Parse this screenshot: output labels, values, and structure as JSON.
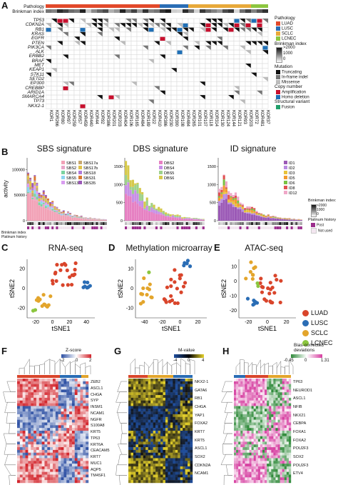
{
  "panels": {
    "A": "A",
    "B": "B",
    "C": "C",
    "D": "D",
    "E": "E",
    "F": "F",
    "G": "G",
    "H": "H"
  },
  "panelA": {
    "track_labels": [
      "Pathology",
      "Brinkman index"
    ],
    "genes": [
      "TP53",
      "CDKN2A",
      "RB1",
      "KRAS",
      "EGFR",
      "PTEN",
      "PIK3CA",
      "ALK",
      "ERBB2",
      "BRAF",
      "MET",
      "KEAP1",
      "STK11",
      "SETD2",
      "EP300",
      "CREBBP",
      "ARID1A",
      "SMARCA4",
      "TP73",
      "NKX2-1"
    ],
    "samples": [
      "KOR1",
      "KOR266",
      "KOR80",
      "KOR97",
      "KOR259",
      "KOR57",
      "KOR459",
      "KOR440",
      "KOR44",
      "KOR92",
      "KOR386",
      "KOR201",
      "KOR203",
      "KOR404",
      "KOR106",
      "KOR165",
      "KOR484",
      "KOR189",
      "KOR22",
      "KOR410",
      "KOR386",
      "KOR230",
      "KOR390",
      "KOR108",
      "KOR484",
      "KOR265",
      "KOR101",
      "KOR107",
      "KOR118",
      "KOR314",
      "KOR130",
      "KOR124",
      "KOR144",
      "KOR121",
      "KOR93",
      "KOR203",
      "KOR72",
      "KOR481",
      "KOR37"
    ],
    "legend": {
      "pathology_title": "Pathology",
      "pathology": [
        {
          "label": "LUAD",
          "color": "#e2492a"
        },
        {
          "label": "LUSC",
          "color": "#2a6db5"
        },
        {
          "label": "SCLC",
          "color": "#e8a93a"
        },
        {
          "label": "LCNEC",
          "color": "#8cc63f"
        }
      ],
      "brinkman_title": "Brinkman index",
      "brinkman_ticks": [
        ">2000",
        "1000",
        "0"
      ],
      "mutation_title": "Mutation",
      "mutation": [
        {
          "label": "Truncating",
          "color": "#111111"
        },
        {
          "label": "In-frame indel",
          "color": "#777777"
        },
        {
          "label": "Missense",
          "color": "#bbbbbb"
        }
      ],
      "copy_title": "Copy number",
      "copy": [
        {
          "label": "Amplification",
          "color": "#c8102e"
        },
        {
          "label": "Homo deletion",
          "color": "#1f6fb5"
        }
      ],
      "sv_title": "Structural variant",
      "sv": [
        {
          "label": "Fusion",
          "color": "#22a06b"
        }
      ]
    }
  },
  "panelB": {
    "charts": [
      {
        "title": "SBS signature",
        "yaxis_label": "activity",
        "yticks": [
          "0",
          "50000",
          "100000"
        ],
        "legend": [
          "SBS1",
          "SBS2",
          "SBS4",
          "SBS5",
          "SBS13",
          "SBS17a",
          "SBS17b",
          "SBS18",
          "SBS31",
          "SBS35"
        ],
        "colors": [
          "#f2a1b6",
          "#e8a6c8",
          "#7ad3a0",
          "#8ed5f0",
          "#d99cf0",
          "#c7a86f",
          "#e0c24a",
          "#b07cd8",
          "#d97832",
          "#9b59b6"
        ]
      },
      {
        "title": "DBS signature",
        "yticks": [
          "0",
          "500",
          "1000",
          "1500"
        ],
        "legend": [
          "DBS2",
          "DBS4",
          "DBS5",
          "DBS6"
        ],
        "colors": [
          "#e680c2",
          "#c78fe6",
          "#9ed18b",
          "#d6c94c"
        ]
      },
      {
        "title": "ID signature",
        "yticks": [
          "0",
          "500",
          "1000",
          "1500"
        ],
        "legend": [
          "ID1",
          "ID2",
          "ID3",
          "ID5",
          "ID6",
          "ID8",
          "ID12"
        ],
        "colors": [
          "#9b59b6",
          "#b98be0",
          "#e8c23a",
          "#f29a2e",
          "#7ac143",
          "#e05252",
          "#f0a8c8"
        ]
      }
    ],
    "side_legend": {
      "brinkman_title": "Brinkman index:",
      "brinkman_ticks": [
        ">2000",
        "1000",
        "0"
      ],
      "platinum_title": "Platinum history",
      "platinum": [
        {
          "label": "Post",
          "color": "#9b2d8c"
        },
        {
          "label": "Not used",
          "color": "#f3e6f0"
        }
      ]
    },
    "row_labels": [
      "Brinkman index",
      "Platinum history"
    ]
  },
  "panelC": {
    "title": "RNA-seq",
    "xlabel": "tSNE1",
    "ylabel": "tSNE2",
    "xticks": [
      "-20",
      "0",
      "20",
      "40"
    ],
    "yticks": [
      "-20",
      "0",
      "20"
    ]
  },
  "panelD": {
    "title": "Methylation microarray",
    "xlabel": "tSNE1",
    "ylabel": "tSNE2",
    "xticks": [
      "-40",
      "-20",
      "0",
      "20"
    ],
    "yticks": [
      "-10",
      "0",
      "10"
    ]
  },
  "panelE": {
    "title": "ATAC-seq",
    "xlabel": "tSNE1",
    "ylabel": "tSNE2",
    "xticks": [
      "-20",
      "0",
      "20"
    ],
    "yticks": [
      "-20",
      "-10",
      "0",
      "10"
    ]
  },
  "cluster_legend": [
    {
      "label": "LUAD",
      "color": "#d9452b"
    },
    {
      "label": "LUSC",
      "color": "#2a6db5"
    },
    {
      "label": "SCLC",
      "color": "#e3a52c"
    },
    {
      "label": "LCNEC",
      "color": "#8cc63f"
    }
  ],
  "panelF": {
    "legend_title": "Z-score",
    "legend_ticks": [
      "-2",
      "0",
      "2"
    ],
    "genes": [
      "ZEB2",
      "ASCL1",
      "CHGA",
      "SYP",
      "INSM1",
      "NCAM1",
      "NGFR",
      "S100A8",
      "KRT5",
      "TP63",
      "KRT6A",
      "CEACAM5",
      "KRT7",
      "MUC1",
      "AQP5",
      "TM4SF1"
    ]
  },
  "panelG": {
    "legend_title": "M-value",
    "legend_ticks": [
      "-4",
      "0",
      "4"
    ],
    "genes": [
      "NKX2-1",
      "GATA6",
      "RB1",
      "CHGA",
      "YAP1",
      "FOXA2",
      "KRT7",
      "KRT5",
      "ASCL1",
      "SOX2",
      "CDKN2A",
      "NCAM1"
    ]
  },
  "panelH": {
    "legend_title": "Bias-corrected deviations",
    "legend_ticks": [
      "-0.45",
      "0",
      "1.31"
    ],
    "genes": [
      "TP63",
      "NEUROD1",
      "ASCL1",
      "NFIB",
      "NKX21",
      "CEBPA",
      "FOXA1",
      "FOXA2",
      "POU2F3",
      "SOX2",
      "POU2F3",
      "ETV4"
    ]
  }
}
